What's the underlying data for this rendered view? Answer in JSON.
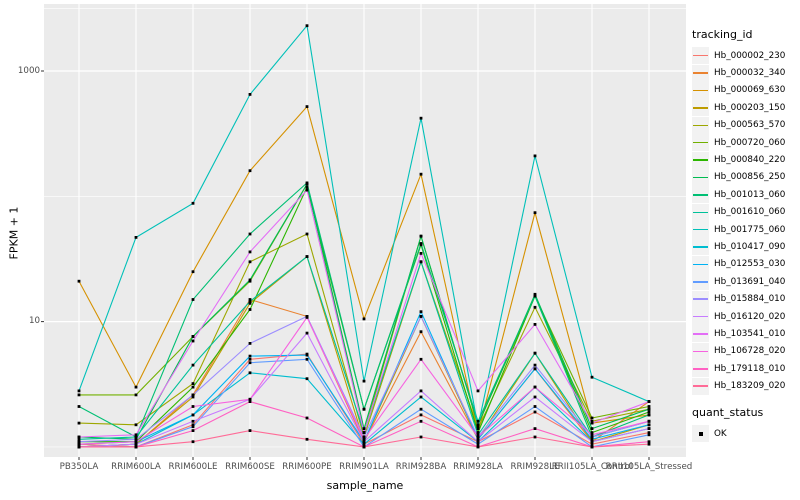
{
  "chart_data": {
    "type": "line",
    "title": "",
    "xlabel": "sample_name",
    "ylabel": "FPKM + 1",
    "y_scale": "log10",
    "grid": true,
    "legend_position": "right",
    "y_ticks": [
      {
        "value": 1000,
        "label": "1000"
      },
      {
        "value": 10,
        "label": "10"
      }
    ],
    "y_minor_values": [
      3162,
      100,
      1
    ],
    "ylim": [
      0.83,
      3400
    ],
    "categories": [
      "PB350LA",
      "RRIM600LA",
      "RRIM600LE",
      "RRIM600SE",
      "RRIM600PE",
      "RRIM901LA",
      "RRIM928BA",
      "RRIM928LA",
      "RRIM928LE",
      "RRII105LA_Control",
      "RRII105LA_Stressed"
    ],
    "series": [
      {
        "name": "Hb_000002_230",
        "color": "#F8766D",
        "values": [
          1.05,
          1.0,
          1.5,
          5.0,
          5.5,
          1.05,
          1.8,
          1.1,
          1.9,
          1.05,
          1.3
        ]
      },
      {
        "name": "Hb_000032_340",
        "color": "#EA8331",
        "values": [
          1.0,
          1.05,
          2.6,
          15,
          11,
          1.1,
          8.3,
          1.15,
          4.2,
          1.1,
          2.3
        ]
      },
      {
        "name": "Hb_000069_630",
        "color": "#D59100",
        "values": [
          21,
          3.0,
          25,
          160,
          520,
          10.5,
          150,
          1.3,
          74,
          1.55,
          1.8
        ]
      },
      {
        "name": "Hb_000203_150",
        "color": "#BE9C00",
        "values": [
          1.0,
          1.05,
          2.5,
          14,
          33,
          1.1,
          11,
          1.15,
          5.6,
          1.1,
          1.5
        ]
      },
      {
        "name": "Hb_000563_570",
        "color": "#9DA700",
        "values": [
          1.55,
          1.5,
          3.2,
          30,
          50,
          1.2,
          30,
          1.4,
          13,
          1.6,
          2.0
        ]
      },
      {
        "name": "Hb_000720_060",
        "color": "#72B000",
        "values": [
          2.6,
          2.6,
          7.6,
          21,
          125,
          1.3,
          48,
          1.5,
          16,
          1.7,
          2.1
        ]
      },
      {
        "name": "Hb_000840_220",
        "color": "#2CB600",
        "values": [
          1.1,
          1.1,
          3.0,
          12.5,
          118,
          2.0,
          41,
          1.3,
          16,
          1.3,
          1.9
        ]
      },
      {
        "name": "Hb_000856_250",
        "color": "#00BC51",
        "values": [
          1.2,
          1.15,
          7.6,
          21.5,
          125,
          1.4,
          48,
          1.5,
          16.5,
          1.4,
          2.0
        ]
      },
      {
        "name": "Hb_001013_060",
        "color": "#00BF74",
        "values": [
          2.1,
          1.2,
          15,
          50,
          128,
          2.0,
          42,
          1.6,
          16,
          1.2,
          1.8
        ]
      },
      {
        "name": "Hb_001610_060",
        "color": "#00C19A",
        "values": [
          1.15,
          1.2,
          4.5,
          14.5,
          33,
          1.3,
          30,
          1.25,
          5.6,
          1.2,
          1.6
        ]
      },
      {
        "name": "Hb_001775_060",
        "color": "#00C0B8",
        "values": [
          2.8,
          47,
          88,
          650,
          2300,
          3.35,
          420,
          1.45,
          210,
          3.6,
          2.3
        ]
      },
      {
        "name": "Hb_010417_090",
        "color": "#00BDD0",
        "values": [
          1.0,
          1.05,
          1.8,
          3.9,
          3.5,
          1.05,
          2.5,
          1.1,
          3.0,
          1.1,
          1.4
        ]
      },
      {
        "name": "Hb_012553_030",
        "color": "#00B2F3",
        "values": [
          1.05,
          1.1,
          1.8,
          5.3,
          5.4,
          1.1,
          12,
          1.15,
          4.2,
          1.15,
          1.5
        ]
      },
      {
        "name": "Hb_013691_040",
        "color": "#619CFF",
        "values": [
          1.0,
          1.0,
          1.45,
          4.7,
          5.0,
          1.0,
          2.0,
          1.05,
          2.1,
          1.0,
          1.25
        ]
      },
      {
        "name": "Hb_015884_010",
        "color": "#9C8DFF",
        "values": [
          1.1,
          1.15,
          2.6,
          6.7,
          11,
          1.2,
          11,
          1.2,
          4.5,
          1.2,
          1.6
        ]
      },
      {
        "name": "Hb_016120_020",
        "color": "#C77CFF",
        "values": [
          1.0,
          1.05,
          1.6,
          2.4,
          8.1,
          1.1,
          2.8,
          1.1,
          2.5,
          1.1,
          1.4
        ]
      },
      {
        "name": "Hb_103541_010",
        "color": "#E36EF6",
        "values": [
          1.2,
          1.25,
          7.0,
          36,
          112,
          1.3,
          35,
          2.8,
          9.5,
          1.55,
          2.3
        ]
      },
      {
        "name": "Hb_106728_020",
        "color": "#F763E0",
        "values": [
          1.05,
          1.1,
          2.1,
          2.4,
          10.8,
          1.15,
          5.0,
          1.2,
          3.0,
          1.25,
          1.6
        ]
      },
      {
        "name": "Hb_179118_010",
        "color": "#FF61C3",
        "values": [
          1.0,
          1.0,
          1.35,
          2.3,
          1.7,
          1.0,
          1.6,
          1.0,
          1.4,
          1.0,
          1.1
        ]
      },
      {
        "name": "Hb_183209_020",
        "color": "#FF6B97",
        "values": [
          1.0,
          1.0,
          1.1,
          1.35,
          1.15,
          1.0,
          1.2,
          1.0,
          1.2,
          1.0,
          1.05
        ]
      }
    ],
    "legend": {
      "tracking_title": "tracking_id",
      "quant_title": "quant_status",
      "quant_items": [
        {
          "label": "OK"
        }
      ]
    },
    "point_color": "#000000"
  },
  "colors": {
    "panel_bg": "#EBEBEB",
    "grid": "#FFFFFF",
    "tick_text": "#4D4D4D",
    "axis_title_text": "#000000",
    "legend_key_bg": "#F2F2F2",
    "tick_mark": "#333333"
  }
}
